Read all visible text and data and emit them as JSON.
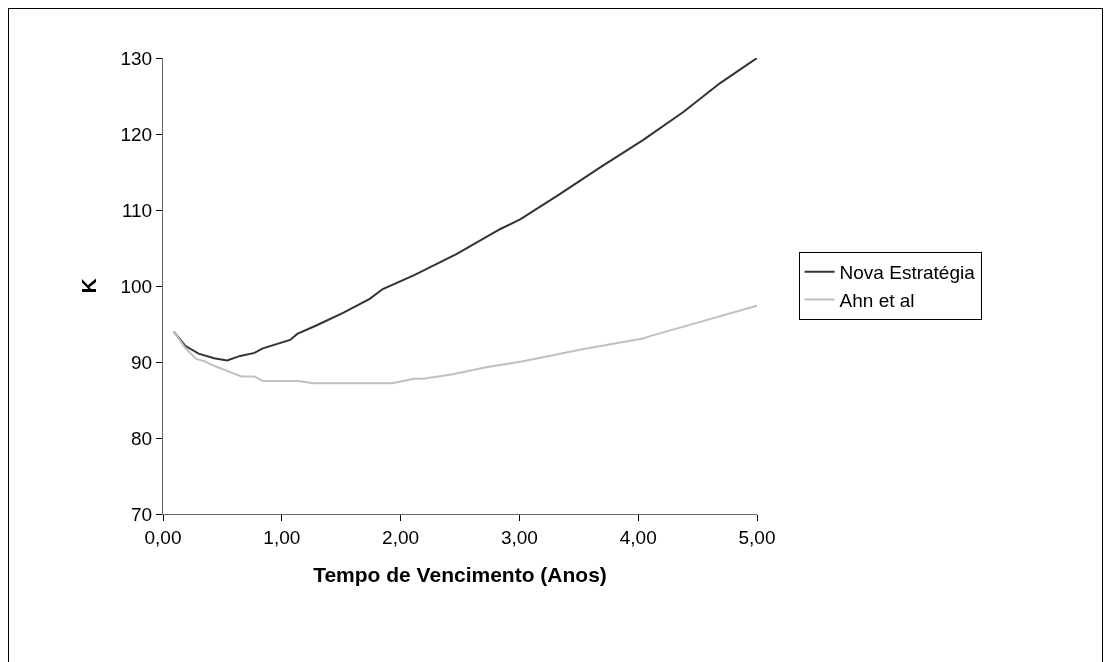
{
  "chart_data": {
    "type": "line",
    "xlabel": "Tempo de Vencimento (Anos)",
    "ylabel": "K",
    "xlim": [
      0,
      5
    ],
    "ylim": [
      70,
      130
    ],
    "xticks": [
      {
        "value": 0,
        "label": "0,00"
      },
      {
        "value": 1,
        "label": "1,00"
      },
      {
        "value": 2,
        "label": "2,00"
      },
      {
        "value": 3,
        "label": "3,00"
      },
      {
        "value": 4,
        "label": "4,00"
      },
      {
        "value": 5,
        "label": "5,00"
      }
    ],
    "yticks": [
      70,
      80,
      90,
      100,
      110,
      120,
      130
    ],
    "grid": false,
    "legend": "right",
    "marker": "none",
    "line_style": "solid",
    "series": [
      {
        "name": "Nova Estratégia",
        "color": "#333333",
        "x": [
          0.09,
          0.19,
          0.3,
          0.43,
          0.54,
          0.65,
          0.77,
          0.84,
          1.07,
          1.13,
          1.29,
          1.52,
          1.74,
          1.85,
          2.11,
          2.33,
          2.47,
          2.84,
          3.01,
          3.34,
          3.68,
          4.04,
          4.38,
          4.69,
          5.0
        ],
        "values": [
          94,
          92.1,
          91.1,
          90.5,
          90.2,
          90.8,
          91.2,
          91.8,
          92.9,
          93.7,
          94.8,
          96.5,
          98.3,
          99.6,
          101.4,
          103.1,
          104.2,
          107.5,
          108.8,
          112.1,
          115.6,
          119.2,
          122.9,
          126.7,
          130
        ]
      },
      {
        "name": "Ahn et al",
        "color": "#c0c0c0",
        "x": [
          0.09,
          0.19,
          0.28,
          0.35,
          0.43,
          0.56,
          0.66,
          0.77,
          0.84,
          1.13,
          1.27,
          1.93,
          2.11,
          2.19,
          2.44,
          2.72,
          3.03,
          3.54,
          4.04,
          4.1,
          5.0
        ],
        "values": [
          94,
          91.8,
          90.4,
          90.1,
          89.5,
          88.7,
          88.1,
          88.1,
          87.5,
          87.5,
          87.2,
          87.2,
          87.8,
          87.8,
          88.4,
          89.3,
          90.1,
          91.7,
          93.1,
          93.4,
          97.4
        ]
      }
    ]
  }
}
